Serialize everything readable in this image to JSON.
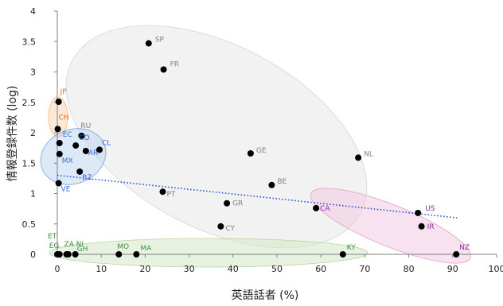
{
  "chart_data": {
    "type": "scatter",
    "title": "",
    "xlabel": "英語話者 (%)",
    "ylabel": "情報登録件数 (log)",
    "xlim": [
      0,
      100
    ],
    "ylim": [
      0,
      4
    ],
    "x_ticks": [
      0,
      10,
      20,
      30,
      40,
      50,
      60,
      70,
      80,
      90,
      100
    ],
    "y_ticks": [
      0,
      0.5,
      1,
      1.5,
      2,
      2.5,
      3,
      3.5,
      4
    ],
    "grid": false,
    "legend": "none",
    "trendline": {
      "style": "dotted",
      "color": "#1f4fcf",
      "x": [
        0,
        91
      ],
      "y": [
        1.3,
        0.6
      ]
    },
    "points": [
      {
        "label": "SP",
        "x": 20.8,
        "y": 3.47,
        "color": "#808080"
      },
      {
        "label": "FR",
        "x": 24.2,
        "y": 3.04,
        "color": "#808080"
      },
      {
        "label": "JP",
        "x": 0.3,
        "y": 2.51,
        "color": "#e86d1f"
      },
      {
        "label": "CH",
        "x": 0.1,
        "y": 2.06,
        "color": "#e86d1f"
      },
      {
        "label": "RU",
        "x": 5.5,
        "y": 1.95,
        "color": "#808080"
      },
      {
        "label": "EC",
        "x": 0.5,
        "y": 1.83,
        "color": "#2f6fd4"
      },
      {
        "label": "CO",
        "x": 4.2,
        "y": 1.79,
        "color": "#2f6fd4"
      },
      {
        "label": "AR",
        "x": 6.5,
        "y": 1.7,
        "color": "#2f6fd4"
      },
      {
        "label": "CL",
        "x": 9.6,
        "y": 1.72,
        "color": "#2f6fd4"
      },
      {
        "label": "MX",
        "x": 0.5,
        "y": 1.65,
        "color": "#2f6fd4"
      },
      {
        "label": "GE",
        "x": 44,
        "y": 1.66,
        "color": "#808080"
      },
      {
        "label": "NL",
        "x": 68.5,
        "y": 1.59,
        "color": "#808080"
      },
      {
        "label": "BZ",
        "x": 5.1,
        "y": 1.36,
        "color": "#2f6fd4"
      },
      {
        "label": "BE",
        "x": 48.8,
        "y": 1.14,
        "color": "#808080"
      },
      {
        "label": "VE",
        "x": 0.3,
        "y": 1.17,
        "color": "#2f6fd4"
      },
      {
        "label": "PT",
        "x": 24,
        "y": 1.03,
        "color": "#808080"
      },
      {
        "label": "GR",
        "x": 38.6,
        "y": 0.84,
        "color": "#808080"
      },
      {
        "label": "CA",
        "x": 58.9,
        "y": 0.76,
        "color": "#8a2da0"
      },
      {
        "label": "US",
        "x": 82.1,
        "y": 0.68,
        "color": "#8a2da0"
      },
      {
        "label": "IR",
        "x": 82.9,
        "y": 0.46,
        "color": "#8a2da0"
      },
      {
        "label": "CY",
        "x": 37.2,
        "y": 0.46,
        "color": "#808080"
      },
      {
        "label": "ET",
        "x": 0,
        "y": 0,
        "color": "#3f8f3f"
      },
      {
        "label": "EG",
        "x": 0.5,
        "y": 0,
        "color": "#3f8f3f"
      },
      {
        "label": "ZA",
        "x": 2.1,
        "y": 0,
        "color": "#3f8f3f"
      },
      {
        "label": "NI",
        "x": 4.1,
        "y": 0,
        "color": "#3f8f3f"
      },
      {
        "label": "GH",
        "x": 2.5,
        "y": 0,
        "color": "#3f8f3f"
      },
      {
        "label": "MO",
        "x": 14,
        "y": 0,
        "color": "#3f8f3f"
      },
      {
        "label": "MA",
        "x": 18,
        "y": 0,
        "color": "#3f8f3f"
      },
      {
        "label": "KY",
        "x": 65,
        "y": 0,
        "color": "#3f8f3f"
      },
      {
        "label": "NZ",
        "x": 90.8,
        "y": 0,
        "color": "#8a2da0"
      }
    ]
  }
}
